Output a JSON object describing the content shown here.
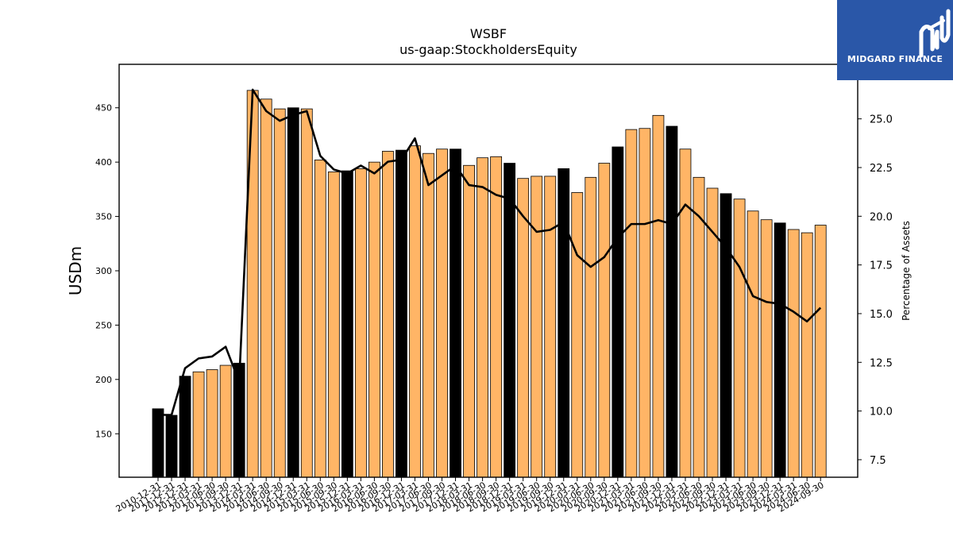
{
  "brand": {
    "name": "MIDGARD FINANCE",
    "colors": {
      "background": "#2a57a8",
      "foreground": "#ffffff"
    }
  },
  "chart_data": {
    "type": "bar",
    "title": "WSBF",
    "subtitle": "us-gaap:StockholdersEquity",
    "ylabel": "USDm",
    "y2label": "Percentage of Assets",
    "ylim": [
      110,
      490
    ],
    "y2lim": [
      6.6,
      27.8
    ],
    "yticks": [
      150,
      200,
      250,
      300,
      350,
      400,
      450
    ],
    "y2ticks": [
      7.5,
      10.0,
      12.5,
      15.0,
      17.5,
      20.0,
      22.5,
      25.0
    ],
    "grid": false,
    "colors": {
      "annual_bar": "#000000",
      "quarter_bar": "#ffb566",
      "line": "#000000"
    },
    "categories": [
      "2010-12-31",
      "2011-12-31",
      "2012-12-31",
      "2013-03-31",
      "2013-06-30",
      "2013-09-30",
      "2013-12-31",
      "2014-03-31",
      "2014-06-30",
      "2014-09-30",
      "2014-12-31",
      "2015-03-31",
      "2015-06-30",
      "2015-09-30",
      "2015-12-31",
      "2016-03-31",
      "2016-06-30",
      "2016-09-30",
      "2016-12-31",
      "2017-03-31",
      "2017-06-30",
      "2017-09-30",
      "2017-12-31",
      "2018-03-31",
      "2018-06-30",
      "2018-09-30",
      "2018-12-31",
      "2019-03-31",
      "2019-06-30",
      "2019-09-30",
      "2019-12-31",
      "2020-03-31",
      "2020-06-30",
      "2020-09-30",
      "2020-12-31",
      "2021-03-31",
      "2021-06-30",
      "2021-09-30",
      "2021-12-31",
      "2022-03-31",
      "2022-06-30",
      "2022-09-30",
      "2022-12-31",
      "2023-03-31",
      "2023-06-30",
      "2023-09-30",
      "2023-12-31",
      "2024-03-31",
      "2024-06-30",
      "2024-09-30"
    ],
    "series": [
      {
        "kind": "bar",
        "values": [
          173,
          167,
          203,
          207,
          209,
          213,
          215,
          466,
          458,
          449,
          450,
          449,
          402,
          391,
          392,
          394,
          400,
          410,
          411,
          415,
          408,
          412,
          412,
          397,
          404,
          405,
          399,
          385,
          387,
          387,
          394,
          372,
          386,
          399,
          414,
          430,
          431,
          443,
          433,
          412,
          386,
          376,
          371,
          366,
          355,
          347,
          344,
          338,
          335,
          342
        ],
        "annual": [
          true,
          true,
          true,
          false,
          false,
          false,
          true,
          false,
          false,
          false,
          true,
          false,
          false,
          false,
          true,
          false,
          false,
          false,
          true,
          false,
          false,
          false,
          true,
          false,
          false,
          false,
          true,
          false,
          false,
          false,
          true,
          false,
          false,
          false,
          true,
          false,
          false,
          false,
          true,
          false,
          false,
          false,
          true,
          false,
          false,
          false,
          true,
          false,
          false,
          false
        ]
      },
      {
        "kind": "line",
        "axis": "right",
        "values": [
          9.8,
          9.8,
          12.2,
          12.7,
          12.8,
          13.3,
          11.5,
          26.5,
          25.4,
          24.9,
          25.2,
          25.4,
          23.1,
          22.4,
          22.2,
          22.6,
          22.2,
          22.8,
          22.9,
          24.0,
          21.6,
          22.1,
          22.6,
          21.6,
          21.5,
          21.1,
          20.9,
          20.0,
          19.2,
          19.3,
          19.7,
          18.0,
          17.4,
          17.9,
          18.9,
          19.6,
          19.6,
          19.8,
          19.6,
          20.6,
          20.0,
          19.2,
          18.4,
          17.4,
          15.9,
          15.6,
          15.5,
          15.1,
          14.6,
          15.3
        ]
      }
    ]
  }
}
